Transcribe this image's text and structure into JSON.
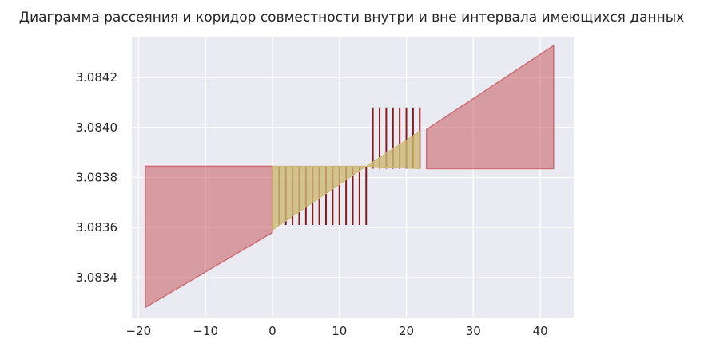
{
  "chart_data": {
    "type": "area",
    "title": "Диаграмма рассеяния и коридор совместности внутри и вне интервала имеющихся данных",
    "xlabel": "",
    "ylabel": "",
    "xlim": [
      -21,
      45
    ],
    "ylim": [
      3.08324,
      3.08436
    ],
    "grid": true,
    "x_ticks": [
      -20,
      -10,
      0,
      10,
      20,
      30,
      40
    ],
    "x_tick_labels": [
      "−20",
      "−10",
      "0",
      "10",
      "20",
      "30",
      "40"
    ],
    "y_ticks": [
      3.0834,
      3.0836,
      3.0838,
      3.084,
      3.0842
    ],
    "y_tick_labels": [
      "3.0834",
      "3.0836",
      "3.0838",
      "3.0840",
      "3.0842"
    ],
    "colors": {
      "background": "#eaeaf2",
      "grid": "#ffffff",
      "outer_corridor": "#c44e52",
      "inner_corridor": "#ccb974",
      "intervals": "#8b1a1a"
    },
    "outer_left_corridor": [
      {
        "x": -19,
        "y_low": 3.08328,
        "y_high": 3.083845
      },
      {
        "x": 0,
        "y_low": 3.08358,
        "y_high": 3.083845
      }
    ],
    "inner_corridor": [
      {
        "x": 0,
        "y_low": 3.08359,
        "y_high": 3.083845
      },
      {
        "x": 14,
        "y_low": 3.083845,
        "y_high": 3.083845
      },
      {
        "x": 22,
        "y_low": 3.083835,
        "y_high": 3.083985
      }
    ],
    "outer_right_corridor": [
      {
        "x": 23,
        "y_low": 3.083835,
        "y_high": 3.083992
      },
      {
        "x": 42,
        "y_low": 3.083835,
        "y_high": 3.084328
      }
    ],
    "intervals": [
      {
        "x": 0,
        "low": 3.08359,
        "high": 3.083845
      },
      {
        "x": 1,
        "low": 3.08361,
        "high": 3.083845
      },
      {
        "x": 2,
        "low": 3.08361,
        "high": 3.083845
      },
      {
        "x": 3,
        "low": 3.08361,
        "high": 3.083845
      },
      {
        "x": 4,
        "low": 3.08361,
        "high": 3.083845
      },
      {
        "x": 5,
        "low": 3.08361,
        "high": 3.083845
      },
      {
        "x": 6,
        "low": 3.08361,
        "high": 3.083845
      },
      {
        "x": 7,
        "low": 3.08361,
        "high": 3.083845
      },
      {
        "x": 8,
        "low": 3.08361,
        "high": 3.083845
      },
      {
        "x": 9,
        "low": 3.08361,
        "high": 3.083845
      },
      {
        "x": 10,
        "low": 3.08361,
        "high": 3.083845
      },
      {
        "x": 11,
        "low": 3.08361,
        "high": 3.083845
      },
      {
        "x": 12,
        "low": 3.08361,
        "high": 3.083845
      },
      {
        "x": 13,
        "low": 3.08361,
        "high": 3.083845
      },
      {
        "x": 14,
        "low": 3.08361,
        "high": 3.083845
      },
      {
        "x": 15,
        "low": 3.083835,
        "high": 3.08408
      },
      {
        "x": 16,
        "low": 3.083835,
        "high": 3.08408
      },
      {
        "x": 17,
        "low": 3.083835,
        "high": 3.08408
      },
      {
        "x": 18,
        "low": 3.083835,
        "high": 3.08408
      },
      {
        "x": 19,
        "low": 3.083835,
        "high": 3.08408
      },
      {
        "x": 20,
        "low": 3.083835,
        "high": 3.08408
      },
      {
        "x": 21,
        "low": 3.083835,
        "high": 3.08408
      },
      {
        "x": 22,
        "low": 3.083835,
        "high": 3.08408
      }
    ]
  }
}
